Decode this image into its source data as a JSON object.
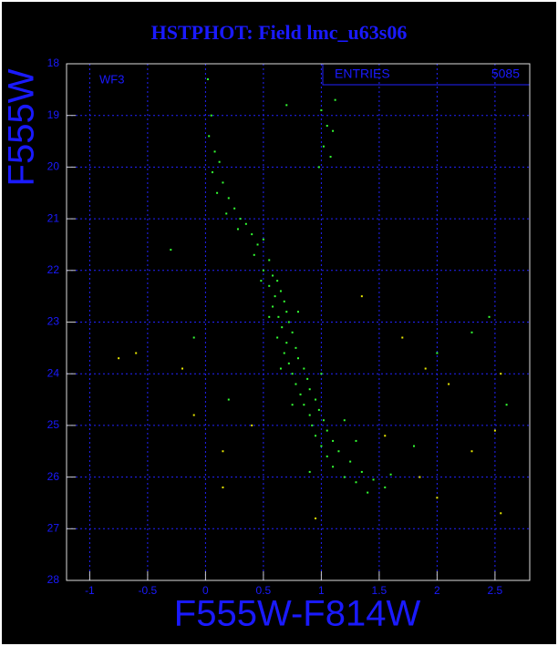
{
  "chart_data": {
    "type": "scatter",
    "title": "HSTPHOT: Field lmc_u63s06",
    "annotation": "WF3",
    "stats_label": "ENTRIES",
    "stats_value": 5085,
    "x_label": "F555W-F814W",
    "y_label": "F555W",
    "xlim": [
      -1.2,
      2.8
    ],
    "ylim": [
      28,
      18
    ],
    "inverted_y": true,
    "xticks": [
      -1,
      -0.5,
      0,
      0.5,
      1,
      1.5,
      2,
      2.5
    ],
    "yticks": [
      18,
      19,
      20,
      21,
      22,
      23,
      24,
      25,
      26,
      27,
      28
    ],
    "grid": true,
    "series": [
      {
        "color": "#33ff33",
        "x": [
          0.02,
          0.05,
          0.03,
          0.08,
          0.12,
          0.06,
          0.15,
          0.1,
          0.2,
          0.25,
          0.18,
          0.3,
          0.35,
          0.28,
          0.4,
          0.45,
          0.5,
          0.42,
          0.55,
          0.5,
          0.58,
          0.62,
          0.55,
          0.65,
          0.6,
          0.68,
          0.58,
          0.7,
          0.63,
          0.72,
          0.66,
          0.75,
          0.62,
          0.7,
          0.78,
          0.68,
          0.8,
          0.72,
          0.85,
          0.75,
          0.88,
          0.78,
          0.9,
          0.82,
          0.95,
          0.85,
          0.98,
          0.9,
          1.02,
          0.92,
          1.05,
          0.95,
          1.1,
          1.0,
          1.15,
          1.05,
          1.25,
          1.1,
          1.35,
          1.2,
          1.45,
          1.3,
          1.55,
          1.4,
          0.9,
          1.6,
          0.75,
          0.65,
          0.55,
          0.48,
          0.8,
          1.0,
          1.2,
          1.3,
          1.0,
          1.05,
          1.1,
          1.02,
          1.08,
          0.98,
          1.12,
          0.7,
          -0.3,
          -0.1,
          2.45,
          2.6,
          0.2,
          2.0,
          1.8,
          2.3
        ],
        "values": [
          18.3,
          19.0,
          19.4,
          19.7,
          19.9,
          20.1,
          20.3,
          20.5,
          20.6,
          20.8,
          20.9,
          21.0,
          21.1,
          21.2,
          21.3,
          21.5,
          21.4,
          21.7,
          21.8,
          22.0,
          22.1,
          22.2,
          22.3,
          22.4,
          22.5,
          22.6,
          22.7,
          22.8,
          22.9,
          23.0,
          23.1,
          23.2,
          23.3,
          23.4,
          23.5,
          23.6,
          23.7,
          23.8,
          23.9,
          24.0,
          24.1,
          24.2,
          24.3,
          24.4,
          24.5,
          24.6,
          24.7,
          24.8,
          24.9,
          25.0,
          25.1,
          25.2,
          25.3,
          25.4,
          25.5,
          25.6,
          25.7,
          25.8,
          25.9,
          26.0,
          26.05,
          26.1,
          26.2,
          26.3,
          25.9,
          25.95,
          24.6,
          23.9,
          22.9,
          22.2,
          22.8,
          24.0,
          24.9,
          25.3,
          18.9,
          19.2,
          19.3,
          19.6,
          19.8,
          20.0,
          18.7,
          18.8,
          21.6,
          23.3,
          22.9,
          24.6,
          24.5,
          23.6,
          25.4,
          23.2
        ]
      },
      {
        "color": "#e8e800",
        "x": [
          -0.6,
          -0.75,
          -0.2,
          0.15,
          0.4,
          1.35,
          1.7,
          1.9,
          2.3,
          2.5,
          2.55,
          2.0,
          1.55,
          0.95,
          -0.1,
          2.1,
          0.15,
          2.55,
          1.85
        ],
        "values": [
          23.6,
          23.7,
          23.9,
          25.5,
          25.0,
          22.5,
          23.3,
          23.9,
          25.5,
          25.1,
          26.7,
          26.4,
          25.2,
          26.8,
          24.8,
          24.2,
          26.2,
          24.0,
          26.0
        ]
      }
    ]
  }
}
